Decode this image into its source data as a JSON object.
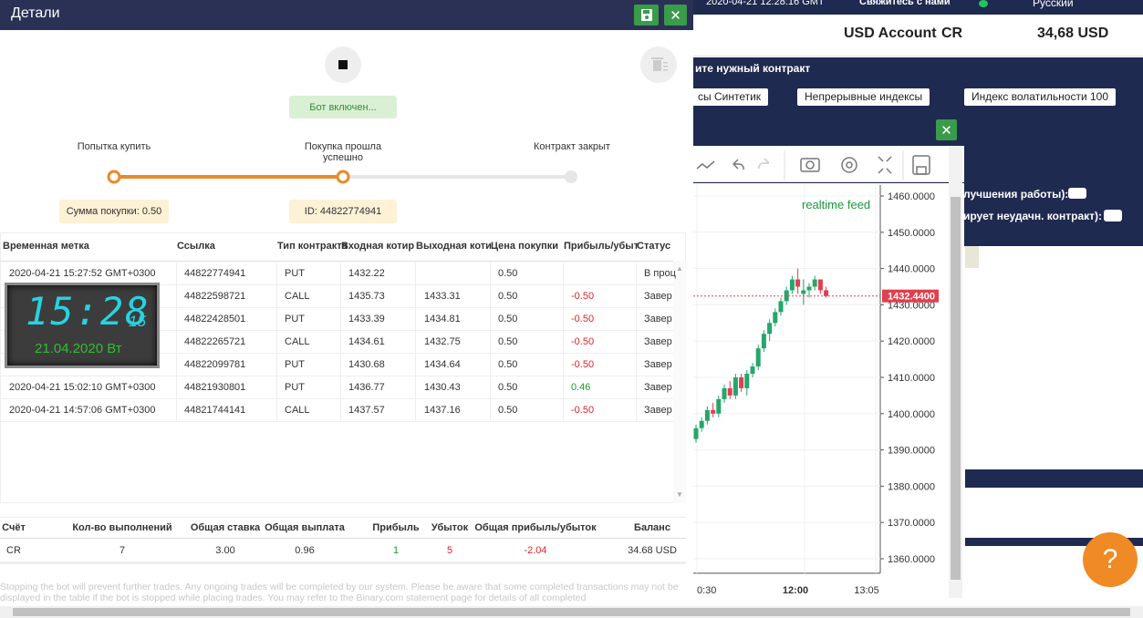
{
  "panel": {
    "title": "Детали",
    "status": "Бот включен...",
    "steps": [
      "Попытка купить",
      "Покупка прошла успешно",
      "Контракт закрыт"
    ],
    "step_tags": [
      "Сумма покупки: 0.50",
      "ID: 44822774941"
    ],
    "table": {
      "headers": [
        "Временная метка",
        "Ссылка",
        "Тип контракта",
        "Входная котир",
        "Выходная коти",
        "Цена покупки",
        "Прибыль/убыт",
        "Статус"
      ],
      "rows": [
        [
          "2020-04-21 15:27:52 GMT+0300",
          "44822774941",
          "PUT",
          "1432.22",
          null,
          "0.50",
          null,
          "В проц"
        ],
        [
          null,
          "44822598721",
          "CALL",
          "1435.73",
          "1433.31",
          "0.50",
          "-0.50",
          "Завер"
        ],
        [
          null,
          "44822428501",
          "PUT",
          "1433.39",
          "1434.81",
          "0.50",
          "-0.50",
          "Завер"
        ],
        [
          null,
          "44822265721",
          "CALL",
          "1434.61",
          "1432.75",
          "0.50",
          "-0.50",
          "Завер"
        ],
        [
          null,
          "44822099781",
          "PUT",
          "1430.68",
          "1434.64",
          "0.50",
          "-0.50",
          "Завер"
        ],
        [
          "2020-04-21 15:02:10 GMT+0300",
          "44821930801",
          "PUT",
          "1436.77",
          "1430.43",
          "0.50",
          "0.46",
          "Завер"
        ],
        [
          "2020-04-21 14:57:06 GMT+0300",
          "44821744141",
          "CALL",
          "1437.57",
          "1437.16",
          "0.50",
          "-0.50",
          "Завер"
        ]
      ]
    },
    "summary": {
      "headers": [
        "Счёт",
        "Кол-во выполнений",
        "Общая ставка",
        "Общая выплата",
        "Прибыль",
        "Убыток",
        "Общая прибыль/убыток",
        "Баланс"
      ],
      "row": [
        "CR",
        "7",
        "3.00",
        "0.96",
        "1",
        "5",
        "-2.04",
        "34.68 USD"
      ]
    },
    "note": "Stopping the bot will prevent further trades. Any ongoing trades will be completed by our system. Please be aware that some completed transactions may not be displayed in the table if the bot is stopped while placing trades. You may refer to the Binary.com statement page for details of all completed"
  },
  "clock": {
    "time": "15:28",
    "seconds": "15",
    "date": "21.04.2020 Вт"
  },
  "topbar": {
    "time": "2020-04-21 12:28:16 GMT",
    "contact": "Свяжитесь с нами",
    "language": "Русский"
  },
  "account": {
    "name": "USD Account",
    "id": "CR",
    "balance": "34,68 USD"
  },
  "contract": {
    "prompt": "ите нужный контракт",
    "breadcrumbs": [
      "сы Синтетик",
      "Непрерывные индексы",
      "Индекс волатильности 100"
    ]
  },
  "options": [
    "лучшения работы):",
    "ирует неудачн. контракт):"
  ],
  "chart_data": {
    "type": "candlestick",
    "annotation": "realtime feed",
    "ylim": [
      1356,
      1463
    ],
    "yticks": [
      {
        "value": 1460,
        "label": "1460.0000"
      },
      {
        "value": 1450,
        "label": "1450.0000"
      },
      {
        "value": 1440,
        "label": "1440.0000"
      },
      {
        "value": 1430,
        "label": "1430.0000"
      },
      {
        "value": 1420,
        "label": "1420.0000"
      },
      {
        "value": 1410,
        "label": "1410.0000"
      },
      {
        "value": 1400,
        "label": "1400.0000"
      },
      {
        "value": 1390,
        "label": "1390.0000"
      },
      {
        "value": 1380,
        "label": "1380.0000"
      },
      {
        "value": 1370,
        "label": "1370.0000"
      },
      {
        "value": 1360,
        "label": "1360.0000"
      }
    ],
    "xticks": [
      "0:30",
      "12:00",
      "13:05"
    ],
    "current": {
      "value": 1432.44,
      "label": "1432.4400"
    },
    "up_color": "#26a66a",
    "down_color": "#e0404f",
    "candles": [
      [
        1393,
        1397,
        1392,
        1396
      ],
      [
        1396,
        1399,
        1395,
        1398
      ],
      [
        1398,
        1402,
        1397,
        1401
      ],
      [
        1401,
        1403,
        1399,
        1400
      ],
      [
        1400,
        1405,
        1399,
        1404
      ],
      [
        1404,
        1408,
        1403,
        1407
      ],
      [
        1407,
        1409,
        1404,
        1405
      ],
      [
        1405,
        1411,
        1404,
        1410
      ],
      [
        1410,
        1411,
        1406,
        1407
      ],
      [
        1407,
        1412,
        1405,
        1411
      ],
      [
        1411,
        1414,
        1410,
        1413
      ],
      [
        1413,
        1419,
        1412,
        1418
      ],
      [
        1418,
        1423,
        1417,
        1422
      ],
      [
        1422,
        1426,
        1420,
        1425
      ],
      [
        1425,
        1429,
        1424,
        1428
      ],
      [
        1428,
        1432,
        1427,
        1431
      ],
      [
        1431,
        1435,
        1430,
        1434
      ],
      [
        1434,
        1438,
        1433,
        1437
      ],
      [
        1437,
        1440,
        1433,
        1435
      ],
      [
        1433,
        1437,
        1430,
        1434
      ],
      [
        1434,
        1436,
        1432,
        1435
      ],
      [
        1435,
        1438,
        1434,
        1437
      ],
      [
        1437,
        1437,
        1433,
        1434
      ],
      [
        1434,
        1435,
        1432,
        1432.44
      ]
    ]
  }
}
